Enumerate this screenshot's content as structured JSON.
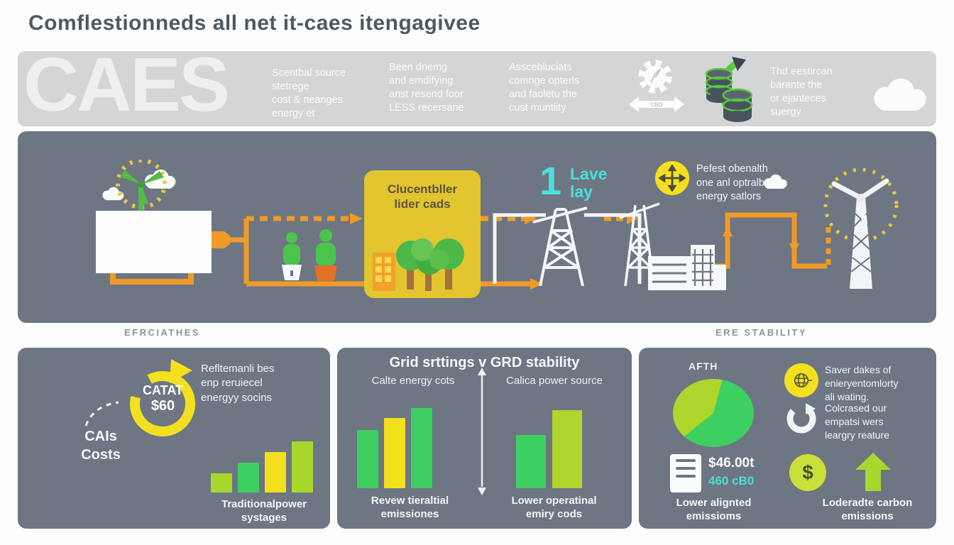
{
  "title": "Comflestionneds all net it-caes itengagivee",
  "header": {
    "brand": "CAES",
    "col1": "Scentbal source\nstetrege\ncost & neanges\nenergy et",
    "col2": "Been dnemg\nand emdifying\nanst resend foor\nLESS recersane",
    "col3": "Asscebluciats\ncomnge opterls\nand faoletu the\ncust muntlity",
    "col4": "Thd eestircan\nbarante the\nor ejanteces\nsuergy",
    "gear_arrow_label": "CBD"
  },
  "diagram": {
    "box_label": "Clucentbller\nlider cads",
    "step_number": "1",
    "step_label": "Lave\nlay",
    "ops_note": "Pefest obenalth\none anl optralbe\nenergy satlors"
  },
  "section_labels": {
    "left": "EFRCIATHES",
    "right": "ERE STABILITY"
  },
  "cards": {
    "costs": {
      "badge_line1": "CATAT",
      "badge_line2": "$60",
      "axis_label": "CAIs\nCosts",
      "note": "Refltemanli bes\nenp reruiecel\nenergyy socins"
    },
    "grid": {
      "title": "Grid srttings v GRD stability",
      "left_sub": "Calte energy cots",
      "right_sub": "Calica power source"
    },
    "impact": {
      "pie_label": "AFTH",
      "item1": "Saver dakes of\nenieryentomlorty\nali wating.",
      "item2": "Colcrased our\nempatsi wers\nleargry reature",
      "stat_value": "$46.00t",
      "stat_sub": "460 cB0",
      "stat_label": "Lower alignted\nemissioms",
      "arrow_label": "Loderadte carbon\nemissions"
    }
  },
  "chart_data": [
    {
      "type": "bar",
      "title": "Traditionalpower systages",
      "label": "Traditionalpower\nsystages",
      "values": [
        27,
        42,
        57,
        72
      ],
      "colors": [
        "#a8d82e",
        "#3ecf63",
        "#f2e01d",
        "#a8d82e"
      ],
      "unit": "relative-height",
      "axis_label": "CAIs Costs"
    },
    {
      "type": "bar",
      "title": "Revew tieraltial emissiones",
      "label": "Revew tieraltial\nemissiones",
      "values": [
        82,
        99,
        113
      ],
      "colors": [
        "#3ecf63",
        "#f2e01d",
        "#3ecf63"
      ],
      "unit": "relative-height"
    },
    {
      "type": "bar",
      "title": "Lower operatinal emiry cods",
      "label": "Lower operatinal\nemiry cods",
      "values": [
        75,
        110
      ],
      "colors": [
        "#3ecf63",
        "#aed62c"
      ],
      "unit": "relative-height"
    },
    {
      "type": "pie",
      "title": "AFTH",
      "slices": [
        {
          "name": "caes-share",
          "value": 60,
          "color": "#3ecf63"
        },
        {
          "name": "other-share",
          "value": 40,
          "color": "#aed62c"
        }
      ]
    }
  ],
  "colors": {
    "accent_orange": "#f09a28",
    "green": "#4cc44f",
    "yellow": "#f2e01d",
    "yellow_green": "#a8d82e",
    "cyan": "#49dfdc",
    "band_gray": "#6d7682",
    "header_gray": "#d3d5d7"
  }
}
